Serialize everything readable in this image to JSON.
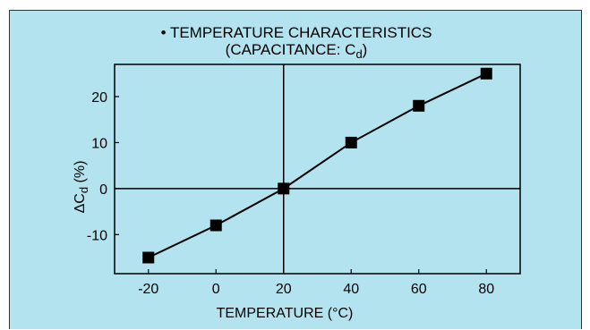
{
  "chart_data": {
    "type": "line",
    "title": "TEMPERATURE CHARACTERISTICS",
    "subtitle": "(CAPACITANCE: Cd)",
    "subtitle_parts": {
      "main": "(CAPACITANCE: C",
      "sub": "d",
      "end": ")"
    },
    "xlabel": "TEMPERATURE (°C)",
    "ylabel": "ΔCd (%)",
    "ylabel_parts": {
      "main": "ΔC",
      "sub": "d",
      "end": " (%)"
    },
    "x": [
      -20,
      0,
      20,
      40,
      60,
      80
    ],
    "values": [
      -15,
      -8,
      0,
      10,
      18,
      25
    ],
    "xlim": [
      -30,
      90
    ],
    "ylim": [
      -18.5,
      27
    ],
    "xticks": [
      -20,
      0,
      20,
      40,
      60,
      80
    ],
    "yticks": [
      -10,
      0,
      10,
      20
    ],
    "reference_lines": {
      "x": 20,
      "y": 0
    },
    "grid": false,
    "legend": "none"
  },
  "colors": {
    "panel_background": "#b3e3ef",
    "plot_background": "#b3e3ef",
    "line": "#000000",
    "marker": "#000000"
  },
  "marker_shape": "square"
}
